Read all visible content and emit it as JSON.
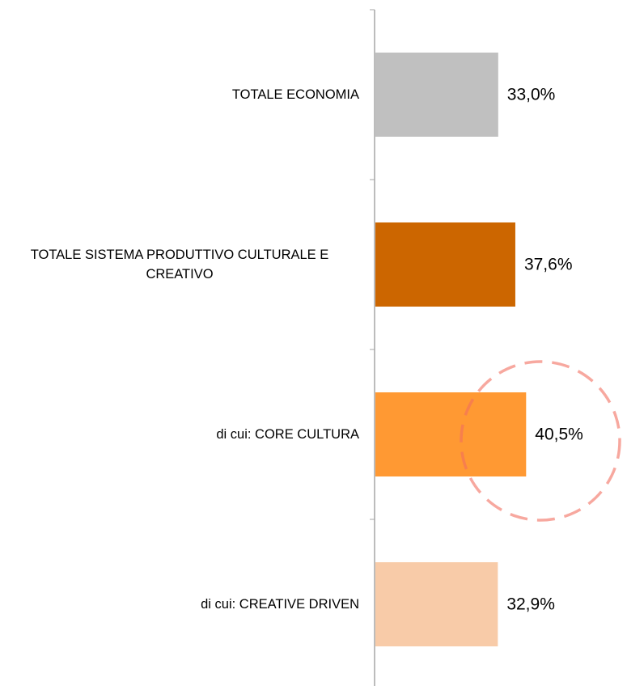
{
  "chart_data": {
    "type": "hbar",
    "categories": [
      "TOTALE ECONOMIA",
      "TOTALE SISTEMA PRODUTTIVO CULTURALE E CREATIVO",
      "di cui: CORE CULTURA",
      "di cui: CREATIVE DRIVEN"
    ],
    "values": [
      33.0,
      37.6,
      40.5,
      32.9
    ],
    "value_labels": [
      "33,0%",
      "37,6%",
      "40,5%",
      "32,9%"
    ],
    "colors": [
      "#c0c0c0",
      "#cc6600",
      "#ff9933",
      "#f8cba8"
    ]
  }
}
